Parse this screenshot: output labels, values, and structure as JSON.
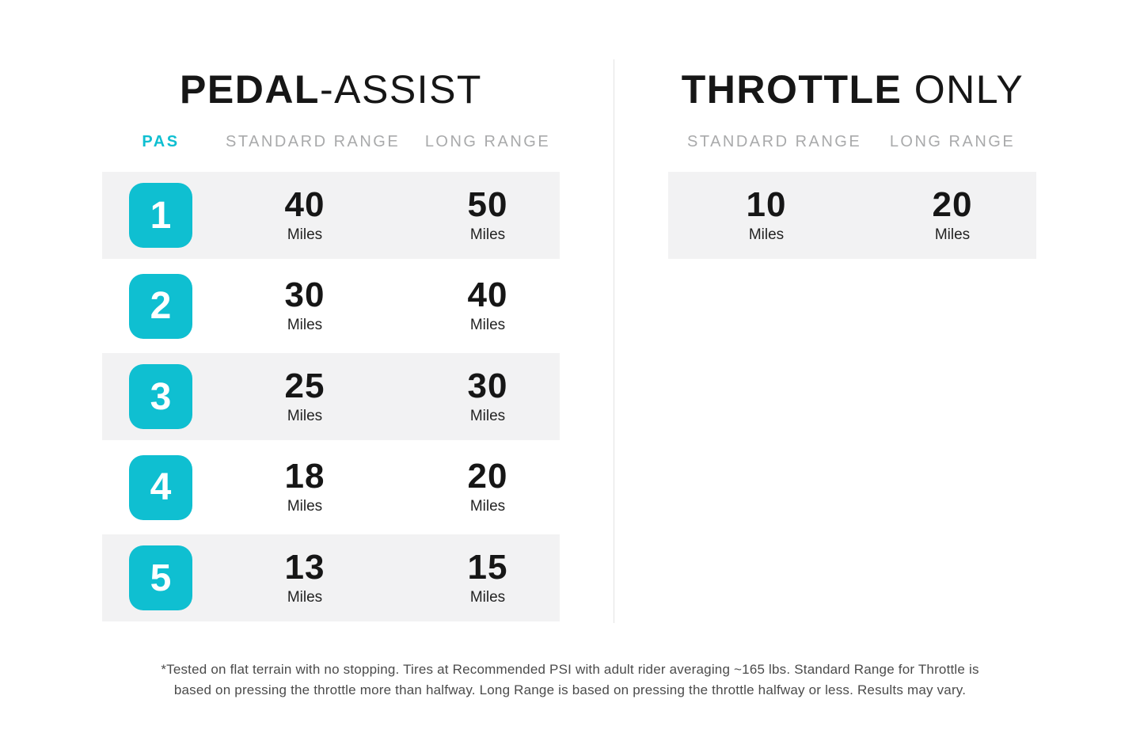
{
  "theme": {
    "accent_teal": "#0fbfd1",
    "row_shade": "#f2f2f3",
    "header_gray": "#a9aaab",
    "title_color": "#161616",
    "footnote_color": "#4b4b4b"
  },
  "pedal_assist": {
    "title_bold": "PEDAL",
    "title_light": "-ASSIST",
    "columns": {
      "pas": "PAS",
      "standard": "STANDARD RANGE",
      "long": "LONG RANGE"
    },
    "rows": [
      {
        "pas": "1",
        "standard": "40",
        "long": "50"
      },
      {
        "pas": "2",
        "standard": "30",
        "long": "40"
      },
      {
        "pas": "3",
        "standard": "25",
        "long": "30"
      },
      {
        "pas": "4",
        "standard": "18",
        "long": "20"
      },
      {
        "pas": "5",
        "standard": "13",
        "long": "15"
      }
    ]
  },
  "throttle": {
    "title_bold": "THROTTLE",
    "title_light": " ONLY",
    "columns": {
      "standard": "STANDARD RANGE",
      "long": "LONG RANGE"
    },
    "row": {
      "standard": "10",
      "long": "20"
    }
  },
  "units": {
    "miles": "Miles"
  },
  "footnote": {
    "line1": "*Tested on flat terrain with no stopping. Tires at Recommended PSI with adult rider averaging ~165 lbs. Standard Range for Throttle is",
    "line2": "based on pressing the throttle more than halfway. Long Range is based on pressing the throttle halfway or less. Results may vary."
  },
  "chart_data": {
    "type": "table",
    "title": "E-bike range: Pedal-Assist vs Throttle Only",
    "tables": [
      {
        "title": "PEDAL-ASSIST",
        "columns": [
          "PAS",
          "STANDARD RANGE",
          "LONG RANGE"
        ],
        "unit": "Miles",
        "rows": [
          [
            1,
            40,
            50
          ],
          [
            2,
            30,
            40
          ],
          [
            3,
            25,
            30
          ],
          [
            4,
            18,
            20
          ],
          [
            5,
            13,
            15
          ]
        ]
      },
      {
        "title": "THROTTLE ONLY",
        "columns": [
          "STANDARD RANGE",
          "LONG RANGE"
        ],
        "unit": "Miles",
        "rows": [
          [
            10,
            20
          ]
        ]
      }
    ]
  }
}
